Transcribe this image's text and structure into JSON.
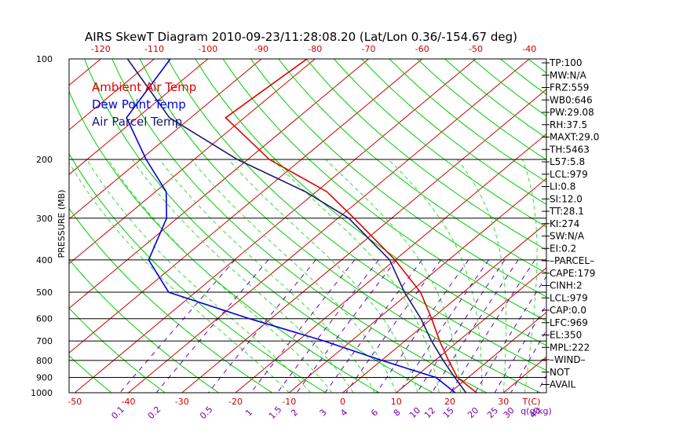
{
  "chart_data": {
    "type": "line",
    "title": "AIRS SkewT Diagram 2010-09-23/11:28:08.20 (Lat/Lon 0.36/-154.67 deg)",
    "ylabel": "PRESSURE (MB)",
    "xlabel": "T(C)",
    "mixing_ratio_label": "q(g/kg)",
    "pressure_ticks": [
      "100",
      "200",
      "300",
      "400",
      "500",
      "600",
      "700",
      "800",
      "900",
      "1000"
    ],
    "pressure_levels": [
      100,
      200,
      300,
      400,
      500,
      600,
      700,
      800,
      900,
      1000
    ],
    "top_temp_ticks": [
      "-120",
      "-110",
      "-100",
      "-90",
      "-80",
      "-70",
      "-60",
      "-50",
      "-40"
    ],
    "bottom_temp_ticks": [
      "-50",
      "-40",
      "-30",
      "-20",
      "-10",
      "0",
      "10",
      "20",
      "30"
    ],
    "mixing_ratio_ticks": [
      "0.1",
      "0.2",
      "0.5",
      "1",
      "1.5",
      "2",
      "3",
      "4",
      "6",
      "8",
      "10",
      "12",
      "15",
      "20",
      "25",
      "30",
      "40"
    ],
    "grid": true,
    "legend_position": "top-left",
    "series": [
      {
        "name": "Ambient Air Temp",
        "color": "#e00000",
        "points": [
          [
            100,
            -81.5
          ],
          [
            150,
            -83.5
          ],
          [
            200,
            -66
          ],
          [
            250,
            -48
          ],
          [
            300,
            -37
          ],
          [
            400,
            -20
          ],
          [
            500,
            -8
          ],
          [
            600,
            0
          ],
          [
            700,
            6.5
          ],
          [
            800,
            12.5
          ],
          [
            900,
            18
          ],
          [
            1000,
            25
          ]
        ]
      },
      {
        "name": "Dew Point Temp",
        "color": "#0000e0",
        "points": [
          [
            100,
            -107
          ],
          [
            150,
            -102
          ],
          [
            200,
            -89
          ],
          [
            250,
            -78
          ],
          [
            300,
            -72
          ],
          [
            400,
            -66
          ],
          [
            500,
            -55
          ],
          [
            600,
            -34
          ],
          [
            700,
            -15
          ],
          [
            800,
            0
          ],
          [
            900,
            14
          ],
          [
            1000,
            21
          ]
        ]
      },
      {
        "name": "Air Parcel Temp",
        "color": "#1a1a6e",
        "points": [
          [
            100,
            -115
          ],
          [
            150,
            -94
          ],
          [
            200,
            -72
          ],
          [
            250,
            -52
          ],
          [
            300,
            -38
          ],
          [
            400,
            -21
          ],
          [
            500,
            -11
          ],
          [
            600,
            -2
          ],
          [
            700,
            5
          ],
          [
            800,
            11.5
          ],
          [
            900,
            17.5
          ],
          [
            1000,
            23
          ]
        ]
      }
    ],
    "side_panel": [
      "TP:100",
      "MW:N/A",
      "FRZ:559",
      "WB0:646",
      "PW:29.08",
      "RH:37.5",
      "MAXT:29.0",
      "TH:5463",
      "L57:5.8",
      "LCL:979",
      "LI:0.8",
      "SI:12.0",
      "TT:28.1",
      "KI:274",
      "SW:N/A",
      "EI:0.2",
      "–PARCEL–",
      "CAPE:179",
      "CINH:2",
      "LCL:979",
      "CAP:0.0",
      "LFC:969",
      "EL:350",
      "MPL:222",
      "–WIND–",
      "NOT",
      "AVAIL"
    ],
    "colors": {
      "isotherm": "#d00000",
      "dry_adiabat": "#00cc00",
      "moist_adiabat": "#33dd33",
      "mixing_ratio": "#6a00b8",
      "isobar": "#000000",
      "ambient": "#e00000",
      "dewpoint": "#0000e0",
      "parcel": "#1a1a6e",
      "tick_red": "#cc0000",
      "tick_purple": "#7a00b0"
    }
  }
}
